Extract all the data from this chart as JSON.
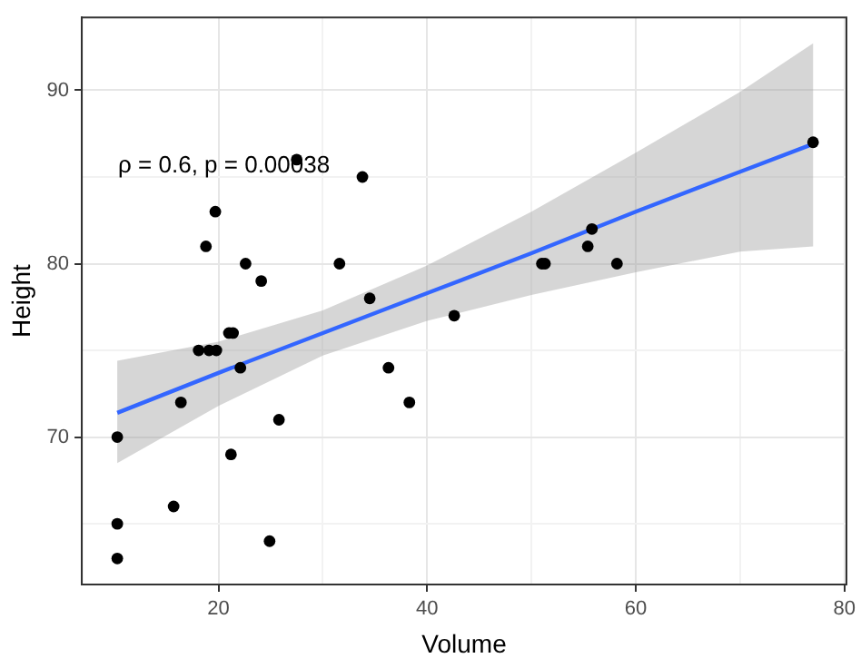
{
  "chart_data": {
    "type": "scatter",
    "xlabel": "Volume",
    "ylabel": "Height",
    "annotations": [
      "ρ = 0.6, p = 0.00038"
    ],
    "xlim": [
      6.9,
      80.2
    ],
    "xticks": [
      20,
      {
        "value": 30,
        "label": null
      },
      40,
      {
        "value": 50,
        "label": null
      },
      60,
      {
        "value": 70,
        "label": null
      },
      80
    ],
    "ylim": [
      61.5,
      94.2
    ],
    "yticks": [
      {
        "value": 65,
        "label": null
      },
      70,
      {
        "value": 75,
        "label": null
      },
      80,
      {
        "value": 85,
        "label": null
      },
      90
    ],
    "grid": true,
    "legend": false,
    "series": [
      {
        "color": "#000000",
        "marker": "circle",
        "x": [
          10.3,
          10.3,
          10.3,
          15.7,
          16.4,
          18.1,
          19.1,
          19.8,
          18.8,
          19.7,
          21.0,
          21.4,
          22.1,
          21.2,
          22.6,
          24.1,
          24.9,
          25.8,
          27.5,
          31.6,
          33.8,
          34.5,
          36.3,
          38.3,
          42.6,
          51.0,
          51.3,
          55.4,
          55.8,
          58.2,
          77.0
        ],
        "values": [
          70,
          65,
          63,
          66,
          72,
          75,
          75,
          75,
          81,
          83,
          76,
          76,
          74,
          69,
          80,
          79,
          64,
          71,
          86,
          80,
          85,
          78,
          74,
          72,
          77,
          80,
          80,
          81,
          82,
          80,
          87
        ]
      },
      {
        "type": "line",
        "color": "#3366ff",
        "marker": "none",
        "x": [
          10.3,
          20,
          30,
          40,
          50,
          60,
          70,
          77
        ],
        "values": [
          71.4,
          73.7,
          76.0,
          78.3,
          80.6,
          83.0,
          85.3,
          86.9
        ],
        "lower": [
          68.5,
          71.8,
          74.7,
          76.7,
          78.2,
          79.5,
          80.7,
          81.0
        ],
        "upper": [
          74.4,
          75.5,
          77.3,
          79.9,
          83.0,
          86.4,
          89.9,
          92.7
        ]
      }
    ]
  }
}
